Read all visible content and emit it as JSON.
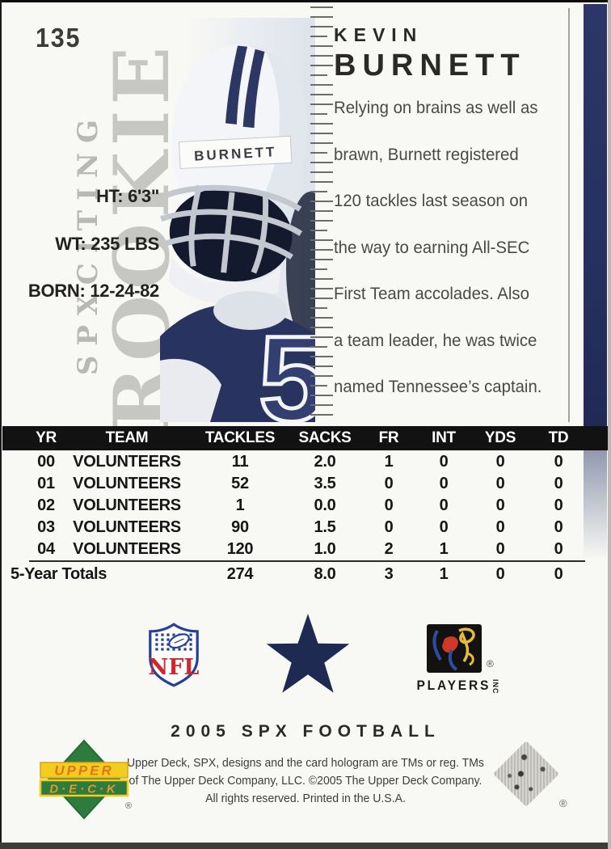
{
  "card": {
    "number": "135",
    "side_brand": "SPXCITING",
    "side_rookie": "ROOKIE",
    "player_first": "KEVIN",
    "player_last": "BURNETT",
    "helmet_name": "BURNETT",
    "jersey_number": "5",
    "bio_lines": [
      "Relying on brains as well as",
      "brawn, Burnett registered",
      "120 tackles last season on",
      "the way to earning All-SEC",
      "First Team accolades. Also",
      "a team leader, he was twice",
      "named Tennessee’s captain."
    ],
    "vitals": {
      "ht": "HT: 6'3\"",
      "wt": "WT: 235 LBS",
      "born": "BORN: 12-24-82"
    }
  },
  "stats_table": {
    "columns": [
      "YR",
      "TEAM",
      "TACKLES",
      "SACKS",
      "FR",
      "INT",
      "YDS",
      "TD"
    ],
    "rows": [
      [
        "00",
        "VOLUNTEERS",
        "11",
        "2.0",
        "1",
        "0",
        "0",
        "0"
      ],
      [
        "01",
        "VOLUNTEERS",
        "52",
        "3.5",
        "0",
        "0",
        "0",
        "0"
      ],
      [
        "02",
        "VOLUNTEERS",
        "1",
        "0.0",
        "0",
        "0",
        "0",
        "0"
      ],
      [
        "03",
        "VOLUNTEERS",
        "90",
        "1.5",
        "0",
        "0",
        "0",
        "0"
      ],
      [
        "04",
        "VOLUNTEERS",
        "120",
        "1.0",
        "2",
        "1",
        "0",
        "0"
      ]
    ],
    "totals_label": "5-Year Totals",
    "totals": [
      "274",
      "8.0",
      "3",
      "1",
      "0",
      "0"
    ]
  },
  "logos": {
    "nfl": "NFL",
    "players": "PLAYERS",
    "players_inc": "INC",
    "players_registered": "®",
    "hologram_registered": "®"
  },
  "footer": {
    "set_title": "2005 SPX FOOTBALL",
    "legal_lines": [
      "Upper Deck, SPX, designs and the card hologram are TMs or reg. TMs",
      "of The Upper Deck Company, LLC. ©2005 The Upper Deck Company.",
      "All rights reserved. Printed in the U.S.A."
    ],
    "upper_deck_line1": "UPPER",
    "upper_deck_line2": "D·E·C·K",
    "upper_deck_registered": "®"
  },
  "ruler": {
    "tick_count": 43
  },
  "colors": {
    "navy": "#27315f",
    "header_bar": "#121212",
    "side_text_gray": "#b8b8b4",
    "nfl_red": "#d2262b",
    "nfl_blue": "#24409a",
    "ud_green": "#2e7b3e",
    "ud_yellow": "#f2cd1f",
    "ud_orange": "#e0731c"
  }
}
